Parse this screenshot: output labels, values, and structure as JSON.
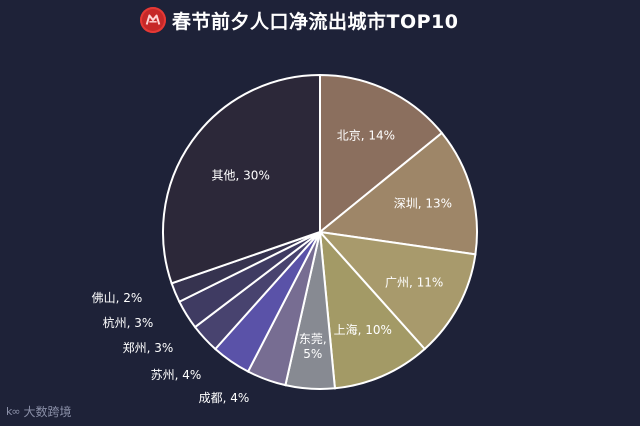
{
  "header": {
    "title": "春节前夕人口净流出城市TOP10"
  },
  "watermark": {
    "mark": "k∞",
    "label": "大数跨境"
  },
  "colors": {
    "background": "#1e2238",
    "stroke": "#ffffff",
    "label_inside": "#ffffff",
    "label_outside": "#ffffff"
  },
  "chart_data": {
    "type": "pie",
    "start": "12 o'clock",
    "direction": "clockwise",
    "slices": [
      {
        "label": "北京",
        "value": 14,
        "display": "北京, 14%",
        "color": "#8b6f5e",
        "placement": "inside"
      },
      {
        "label": "深圳",
        "value": 13,
        "display": "深圳, 13%",
        "color": "#9e8668",
        "placement": "inside"
      },
      {
        "label": "广州",
        "value": 11,
        "display": "广州, 11%",
        "color": "#a89a6c",
        "placement": "inside"
      },
      {
        "label": "上海",
        "value": 10,
        "display": "上海, 10%",
        "color": "#a39a66",
        "placement": "inside"
      },
      {
        "label": "东莞",
        "value": 5,
        "display": "东莞,",
        "display2": "5%",
        "color": "#878a92",
        "placement": "inside"
      },
      {
        "label": "成都",
        "value": 4,
        "display": "成都, 4%",
        "color": "#776d92",
        "placement": "outside"
      },
      {
        "label": "苏州",
        "value": 4,
        "display": "苏州, 4%",
        "color": "#5a52a8",
        "placement": "outside"
      },
      {
        "label": "郑州",
        "value": 3,
        "display": "郑州, 3%",
        "color": "#48436f",
        "placement": "outside"
      },
      {
        "label": "杭州",
        "value": 3,
        "display": "杭州, 3%",
        "color": "#3f3b62",
        "placement": "outside"
      },
      {
        "label": "佛山",
        "value": 2,
        "display": "佛山, 2%",
        "color": "#36334f",
        "placement": "outside"
      },
      {
        "label": "其他",
        "value": 30,
        "display": "其他, 30%",
        "color": "#2c2839",
        "placement": "inside"
      }
    ]
  }
}
